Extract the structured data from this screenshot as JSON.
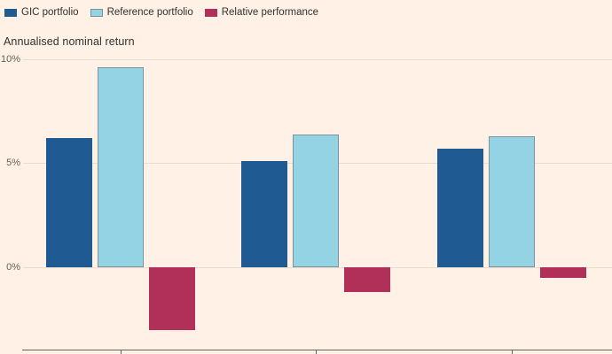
{
  "subtitle": "Annualised nominal return",
  "colors": {
    "background": "#fff1e5",
    "text": "#33302e",
    "muted_text": "#66605c",
    "gridline": "#e9dcd1",
    "axis": "#66605c",
    "gic_blue": "#1f5a93",
    "reference_light_blue": "#94d3e4",
    "reference_border": "#7e909b",
    "relative_crimson": "#b0305a"
  },
  "chart_data": {
    "type": "bar",
    "title": "",
    "subtitle": "Annualised nominal return",
    "xlabel": "",
    "ylabel": "Annualised nominal return",
    "categories": [
      "",
      "",
      ""
    ],
    "series": [
      {
        "name": "GIC portfolio",
        "color": "#1f5a93",
        "values": [
          6.2,
          5.1,
          5.7
        ]
      },
      {
        "name": "Reference portfolio",
        "color": "#94d3e4",
        "border": "#7e909b",
        "values": [
          9.6,
          6.4,
          6.3
        ]
      },
      {
        "name": "Relative performance",
        "color": "#b0305a",
        "values": [
          -3.0,
          -1.2,
          -0.5
        ]
      }
    ],
    "yticks": [
      "10%",
      "5%",
      "0%"
    ],
    "ytick_values": [
      10,
      5,
      0
    ],
    "ylim": [
      -4,
      10
    ],
    "grid": "horizontal",
    "legend_position": "top-left",
    "category_labels_visible": false
  }
}
